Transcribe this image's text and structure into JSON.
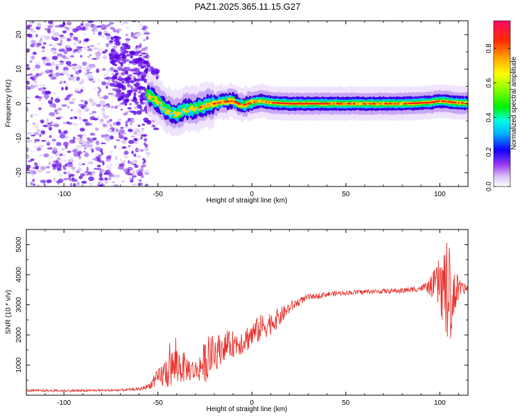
{
  "title": "PAZ1.2025.365.11.15.G27",
  "colors": {
    "snr_line": "#e8312b",
    "band_core": "#ff1a1a",
    "band_outer": "#3a00e0",
    "scatter_dark": "#5a00e6",
    "scatter_light": "#c9a6f5"
  },
  "chart_data": [
    {
      "type": "heatmap",
      "name": "spectrogram",
      "xlabel": "Height of straight line (km)",
      "ylabel": "Frequency (Hz)",
      "xlim": [
        -120,
        115
      ],
      "ylim": [
        -24,
        24
      ],
      "xticks": [
        -100,
        -50,
        0,
        50,
        100
      ],
      "yticks": [
        -20,
        -10,
        0,
        10,
        20
      ],
      "xtick_labels": [
        "-100",
        "-50",
        "0",
        "50",
        "100"
      ],
      "ytick_labels": [
        "-20",
        "-10",
        "0",
        "10",
        "20"
      ],
      "band_center_hz": [
        [
          -55,
          2.5
        ],
        [
          -50,
          0.5
        ],
        [
          -45,
          -2
        ],
        [
          -40,
          -3
        ],
        [
          -35,
          -1.5
        ],
        [
          -30,
          -1.5
        ],
        [
          -25,
          -0.5
        ],
        [
          -20,
          0
        ],
        [
          -15,
          0.5
        ],
        [
          -10,
          0.8
        ],
        [
          -5,
          -0.5
        ],
        [
          0,
          0.3
        ],
        [
          5,
          0.8
        ],
        [
          10,
          0.3
        ],
        [
          20,
          0
        ],
        [
          50,
          0
        ],
        [
          80,
          0
        ],
        [
          95,
          0.3
        ],
        [
          100,
          0.8
        ],
        [
          105,
          0.5
        ],
        [
          110,
          0.2
        ],
        [
          115,
          0.2
        ]
      ],
      "colorbar": {
        "label": "Normalized spectral amplitude",
        "range": [
          0,
          0.96
        ],
        "ticks": [
          0.0,
          0.2,
          0.4,
          0.6,
          0.8
        ],
        "tick_labels": [
          "0.0",
          "0.2",
          "0.4",
          "0.6",
          "0.8"
        ]
      }
    },
    {
      "type": "line",
      "name": "snr",
      "xlabel": "Height of straight line (km)",
      "ylabel": "SNR (10 * v/v)",
      "xlim": [
        -120,
        115
      ],
      "ylim": [
        0,
        5500
      ],
      "xticks": [
        -100,
        -50,
        0,
        50,
        100
      ],
      "yticks": [
        1000,
        2000,
        3000,
        4000,
        5000
      ],
      "xtick_labels": [
        "-100",
        "-50",
        "0",
        "50",
        "100"
      ],
      "ytick_labels": [
        "1000",
        "2000",
        "3000",
        "4000",
        "5000"
      ],
      "series": [
        {
          "name": "SNR",
          "envelope_x": [
            -120,
            -90,
            -70,
            -60,
            -55,
            -50,
            -45,
            -40,
            -35,
            -30,
            -25,
            -20,
            -15,
            -10,
            -5,
            0,
            5,
            10,
            15,
            20,
            25,
            30,
            40,
            50,
            60,
            70,
            80,
            90,
            95,
            100,
            103,
            105,
            108,
            110,
            115
          ],
          "envelope_y": [
            150,
            150,
            170,
            200,
            300,
            550,
            800,
            1000,
            900,
            800,
            1100,
            1400,
            1600,
            1700,
            1800,
            2000,
            2250,
            2400,
            2600,
            2900,
            3100,
            3250,
            3350,
            3400,
            3430,
            3450,
            3470,
            3550,
            3600,
            3700,
            3500,
            3300,
            3400,
            3500,
            3550
          ],
          "noise_x": [
            -120,
            -60,
            -55,
            -50,
            -45,
            -40,
            -35,
            -30,
            -25,
            -20,
            -15,
            -10,
            -5,
            0,
            5,
            10,
            15,
            20,
            25,
            30,
            40,
            50,
            60,
            70,
            80,
            90,
            95,
            100,
            103,
            105,
            108,
            110,
            112,
            115
          ],
          "noise_y": [
            40,
            40,
            90,
            300,
            600,
            700,
            450,
            350,
            700,
            650,
            450,
            450,
            450,
            450,
            450,
            400,
            300,
            200,
            130,
            100,
            90,
            80,
            80,
            80,
            90,
            100,
            300,
            900,
            1600,
            1700,
            900,
            400,
            200,
            150
          ]
        }
      ]
    }
  ]
}
